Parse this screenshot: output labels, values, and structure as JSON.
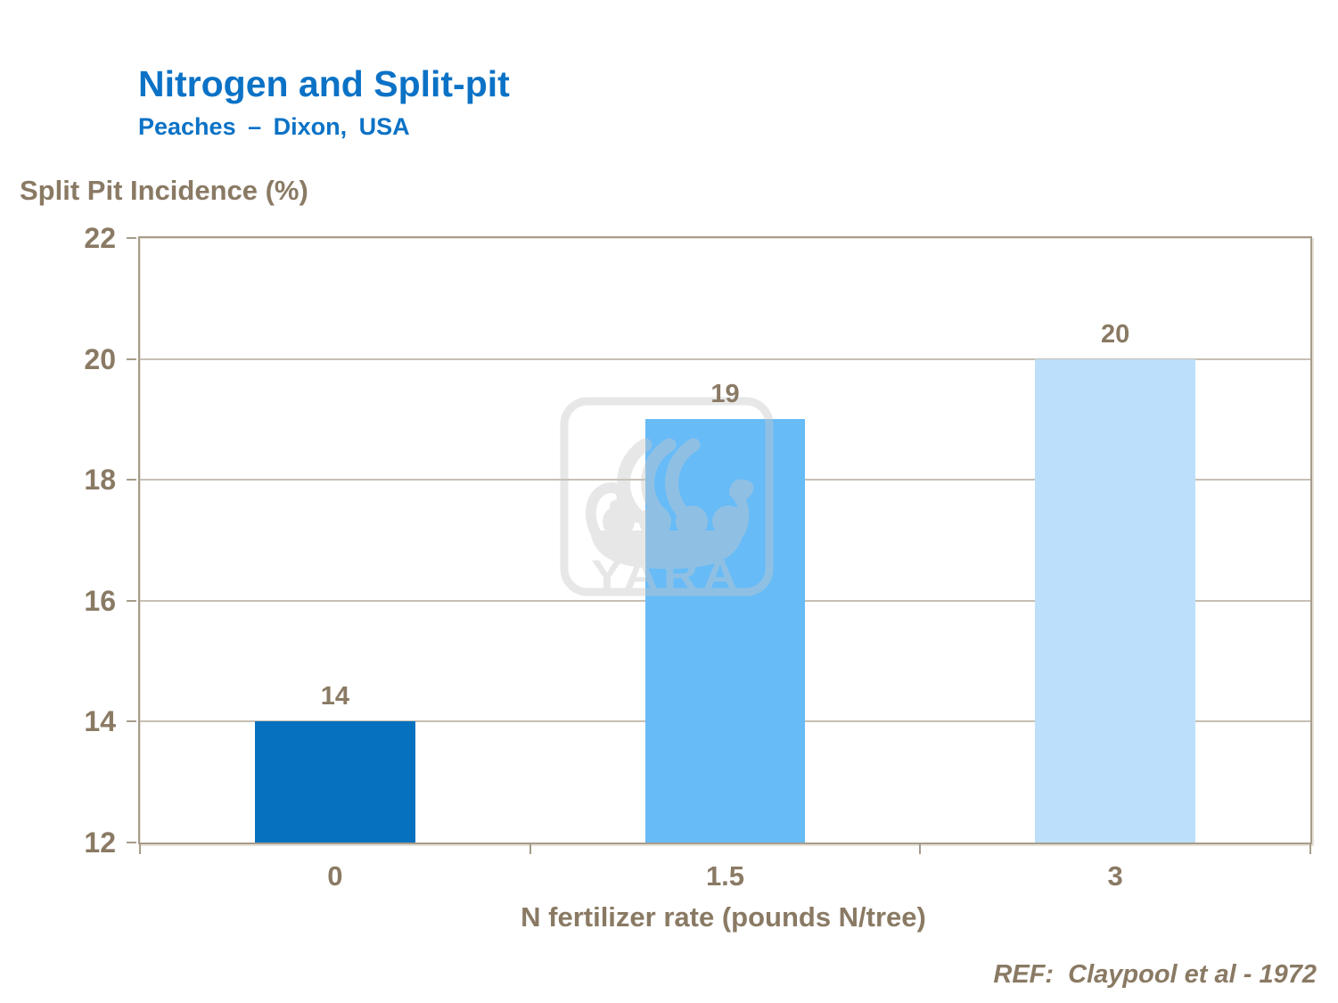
{
  "chart_data": {
    "type": "bar",
    "title": "Nitrogen and Split-pit",
    "subtitle": "Peaches – Dixon, USA",
    "ylabel": "Split Pit Incidence (%)",
    "xlabel": "N fertilizer rate (pounds N/tree)",
    "categories": [
      "0",
      "1.5",
      "3"
    ],
    "values": [
      14,
      19,
      20
    ],
    "data_labels": [
      "14",
      "19",
      "20"
    ],
    "ylim": [
      12,
      22
    ],
    "yticks": [
      22,
      20,
      18,
      16,
      14,
      12
    ],
    "gridlines": [
      14,
      16,
      18,
      20
    ],
    "grid": true,
    "legend": false,
    "bar_colors": [
      "#0671bf",
      "#67bbf7",
      "#bce0fb"
    ]
  },
  "reference": "REF:  Claypool et al - 1972",
  "watermark_label": "YARA",
  "colors": {
    "title_blue": "#0b72c6",
    "text_brown": "#8a7a64",
    "axis_line": "#a79c8b",
    "gridline": "#c6bfb3"
  }
}
